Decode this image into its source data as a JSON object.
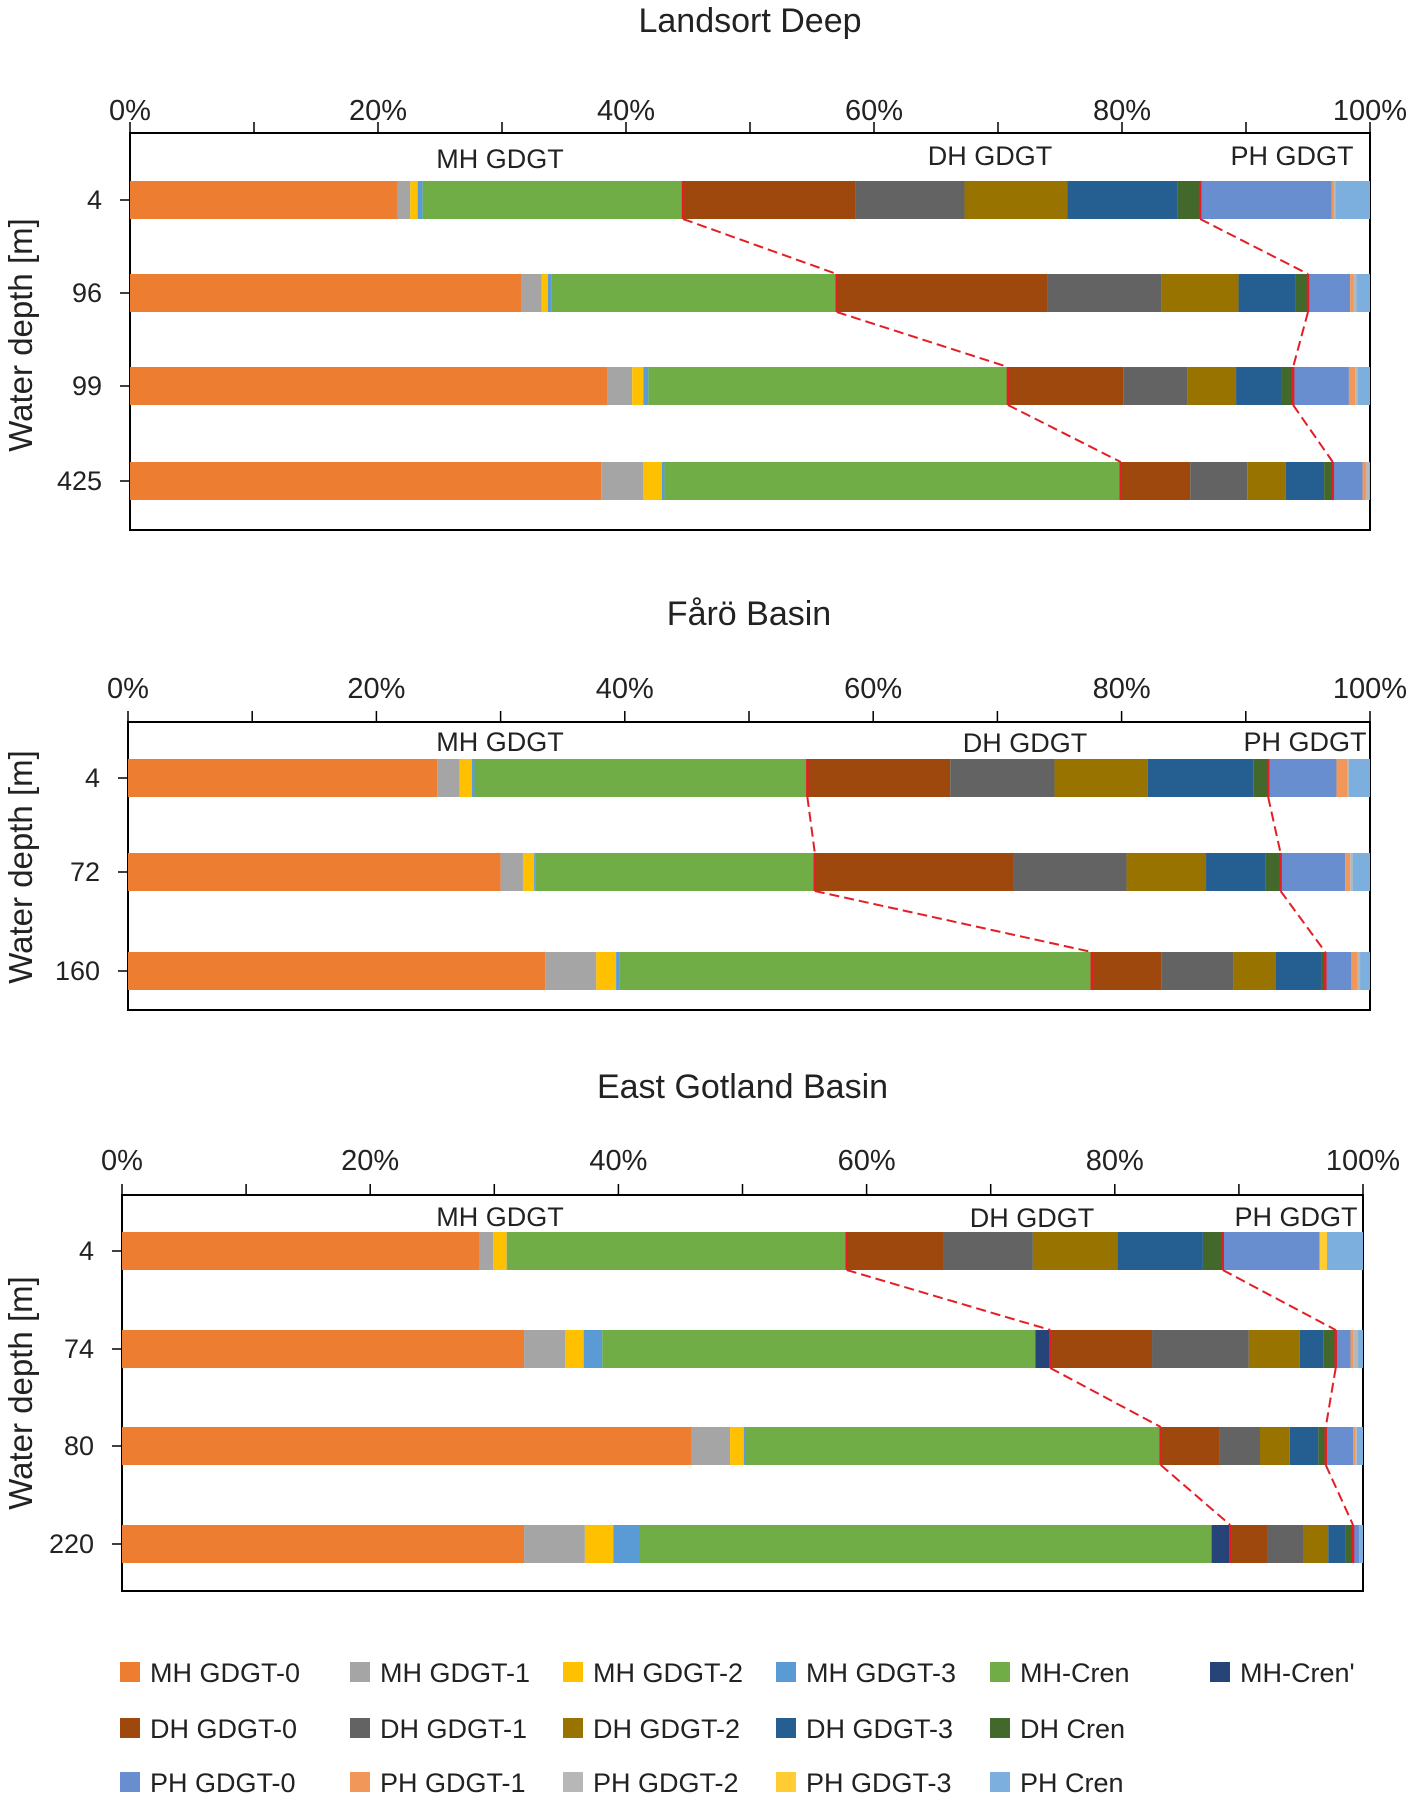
{
  "legend": [
    {
      "name": "MH GDGT-0",
      "color": "#ED7D31"
    },
    {
      "name": "MH GDGT-1",
      "color": "#A5A5A5"
    },
    {
      "name": "MH GDGT-2",
      "color": "#FFC000"
    },
    {
      "name": "MH GDGT-3",
      "color": "#5B9BD5"
    },
    {
      "name": "MH-Cren",
      "color": "#70AD47"
    },
    {
      "name": "MH-Cren'",
      "color": "#264478"
    },
    {
      "name": "DH GDGT-0",
      "color": "#9E480E"
    },
    {
      "name": "DH GDGT-1",
      "color": "#636363"
    },
    {
      "name": "DH GDGT-2",
      "color": "#997300"
    },
    {
      "name": "DH GDGT-3",
      "color": "#255E91"
    },
    {
      "name": "DH Cren",
      "color": "#43682B"
    },
    {
      "name": "PH GDGT-0",
      "color": "#698ED0"
    },
    {
      "name": "PH GDGT-1",
      "color": "#F1975A"
    },
    {
      "name": "PH GDGT-2",
      "color": "#B7B7B7"
    },
    {
      "name": "PH GDGT-3",
      "color": "#FFCD33"
    },
    {
      "name": "PH Cren",
      "color": "#7CAFDD"
    }
  ],
  "chart_data": [
    {
      "type": "bar",
      "orientation": "horizontal",
      "stacked": true,
      "title": "Landsort Deep",
      "ylabel": "Water depth [m]",
      "xlim": [
        0,
        100
      ],
      "xticks": [
        "0%",
        "20%",
        "40%",
        "60%",
        "80%",
        "100%"
      ],
      "group_labels": [
        "MH GDGT",
        "DH GDGT",
        "PH GDGT"
      ],
      "categories": [
        "4",
        "96",
        "99",
        "425"
      ],
      "values": [
        [
          21.6,
          1.0,
          0.6,
          0.4,
          21.0,
          0.0,
          13.9,
          8.8,
          8.3,
          8.9,
          1.8,
          10.6,
          0.2,
          0.1,
          0.0,
          2.8
        ],
        [
          31.6,
          1.6,
          0.5,
          0.3,
          23.0,
          0.0,
          17.0,
          9.2,
          6.2,
          4.6,
          1.0,
          3.4,
          0.3,
          0.2,
          0.0,
          1.1
        ],
        [
          38.5,
          2.0,
          0.9,
          0.4,
          29.0,
          0.0,
          9.3,
          5.2,
          3.9,
          3.7,
          0.9,
          4.5,
          0.5,
          0.2,
          0.0,
          1.0
        ],
        [
          38.0,
          3.4,
          1.5,
          0.2,
          36.8,
          0.0,
          5.6,
          4.6,
          3.1,
          3.1,
          0.7,
          2.4,
          0.3,
          0.2,
          0.0,
          0.1
        ]
      ]
    },
    {
      "type": "bar",
      "orientation": "horizontal",
      "stacked": true,
      "title": "Fårö Basin",
      "ylabel": "Water depth [m]",
      "xlim": [
        0,
        100
      ],
      "xticks": [
        "0%",
        "20%",
        "40%",
        "60%",
        "80%",
        "100%"
      ],
      "group_labels": [
        "MH GDGT",
        "DH GDGT",
        "PH GDGT"
      ],
      "categories": [
        "4",
        "72",
        "160"
      ],
      "values": [
        [
          24.9,
          1.8,
          1.0,
          0.2,
          26.8,
          0.0,
          11.5,
          8.4,
          7.5,
          8.5,
          1.2,
          5.5,
          0.9,
          0.1,
          0.0,
          1.7
        ],
        [
          30.0,
          1.8,
          0.9,
          0.1,
          22.5,
          0.0,
          16.0,
          9.1,
          6.4,
          4.8,
          1.2,
          5.2,
          0.4,
          0.2,
          0.0,
          1.4
        ],
        [
          33.6,
          4.1,
          1.6,
          0.3,
          38.0,
          0.0,
          5.6,
          5.8,
          3.4,
          3.7,
          0.3,
          2.1,
          0.5,
          0.2,
          0.0,
          0.8
        ]
      ]
    },
    {
      "type": "bar",
      "orientation": "horizontal",
      "stacked": true,
      "title": "East Gotland Basin",
      "ylabel": "Water depth [m]",
      "xlim": [
        0,
        100
      ],
      "xticks": [
        "0%",
        "20%",
        "40%",
        "60%",
        "80%",
        "100%"
      ],
      "group_labels": [
        "MH GDGT",
        "DH GDGT",
        "PH GDGT"
      ],
      "categories": [
        "4",
        "74",
        "80",
        "220"
      ],
      "values": [
        [
          28.8,
          1.1,
          1.1,
          0.1,
          27.3,
          0.0,
          7.8,
          7.2,
          6.8,
          6.9,
          1.6,
          7.8,
          0.0,
          0.0,
          0.6,
          2.9
        ],
        [
          32.4,
          3.3,
          1.5,
          1.5,
          34.9,
          1.2,
          8.2,
          7.8,
          4.1,
          1.9,
          1.0,
          1.2,
          0.2,
          0.4,
          0.0,
          0.4
        ],
        [
          45.9,
          3.1,
          1.1,
          0.1,
          33.5,
          0.0,
          4.7,
          3.3,
          2.4,
          2.3,
          0.6,
          2.2,
          0.2,
          0.1,
          0.0,
          0.5
        ],
        [
          32.4,
          4.9,
          2.3,
          2.1,
          46.1,
          1.5,
          3.0,
          2.9,
          2.0,
          1.4,
          0.6,
          0.5,
          0.0,
          0.0,
          0.0,
          0.3
        ]
      ]
    }
  ]
}
